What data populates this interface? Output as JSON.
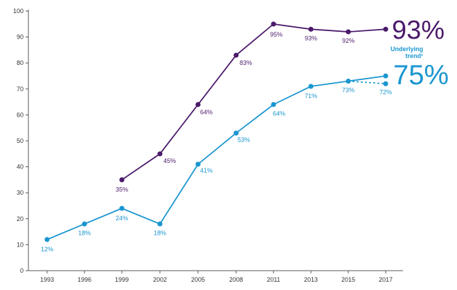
{
  "chart_data": {
    "type": "line",
    "x": [
      "1993",
      "1996",
      "1999",
      "2002",
      "2005",
      "2008",
      "2011",
      "2013",
      "2015",
      "2017"
    ],
    "ylim": [
      0,
      100
    ],
    "yticks": [
      0,
      10,
      20,
      30,
      40,
      50,
      60,
      70,
      80,
      90,
      100
    ],
    "grid": false,
    "colors": {
      "purple": "#4b1a6b",
      "blue": "#1a96d0",
      "axis": "#555555"
    },
    "series": [
      {
        "key": "purple",
        "color": "#4b1a6b",
        "values": [
          null,
          null,
          35,
          45,
          64,
          83,
          95,
          93,
          92,
          93
        ],
        "labels": [
          null,
          null,
          "35%",
          "45%",
          "64%",
          "83%",
          "95%",
          "93%",
          "92%",
          null
        ],
        "end_label": "93%"
      },
      {
        "key": "blue",
        "color": "#1a96d0",
        "values": [
          12,
          18,
          24,
          18,
          41,
          53,
          64,
          71,
          73,
          75
        ],
        "labels": [
          "12%",
          "18%",
          "24%",
          "18%",
          "41%",
          "53%",
          "64%",
          "71%",
          "73%",
          null
        ],
        "end_label": "75%"
      },
      {
        "key": "underlying-trend",
        "name": "Underlying trend¹",
        "color": "#1a96d0",
        "dashed": true,
        "values": [
          null,
          null,
          null,
          null,
          null,
          null,
          null,
          null,
          73,
          72
        ],
        "labels": [
          null,
          null,
          null,
          null,
          null,
          null,
          null,
          null,
          null,
          "72%"
        ]
      }
    ],
    "annotations": {
      "big_purple": "93%",
      "big_blue": "75%",
      "trend_line1": "Underlying",
      "trend_line2": "trend¹"
    }
  }
}
